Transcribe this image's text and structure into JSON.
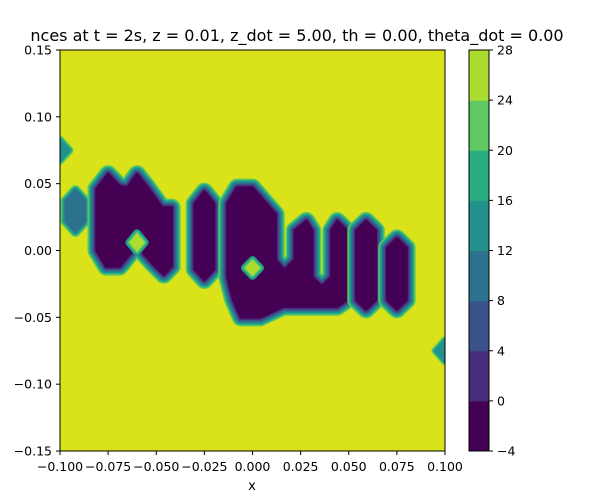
{
  "chart_data": {
    "type": "heatmap",
    "title": "nces at t = 2s, z = 0.01, z_dot = 5.00, th = 0.00, theta_dot = 0.00",
    "xlabel": "x",
    "ylabel": "",
    "xlim": [
      -0.1,
      0.1
    ],
    "ylim": [
      -0.15,
      0.15
    ],
    "x_ticks": [
      -0.1,
      -0.075,
      -0.05,
      -0.025,
      0.0,
      0.025,
      0.05,
      0.075,
      0.1
    ],
    "x_tick_labels": [
      "−0.100",
      "−0.075",
      "−0.050",
      "−0.025",
      "0.000",
      "0.025",
      "0.050",
      "0.075",
      "0.100"
    ],
    "y_ticks": [
      -0.15,
      -0.1,
      -0.05,
      0.0,
      0.05,
      0.1,
      0.15
    ],
    "y_tick_labels": [
      "−0.15",
      "−0.10",
      "−0.05",
      "0.00",
      "0.05",
      "0.10",
      "0.15"
    ],
    "colorbar": {
      "levels": [
        -4,
        0,
        4,
        8,
        12,
        16,
        20,
        24,
        28
      ],
      "tick_labels": [
        "−4",
        "0",
        "4",
        "8",
        "12",
        "16",
        "20",
        "24",
        "28"
      ],
      "colors": [
        "#440154",
        "#472d7b",
        "#3b528b",
        "#2c728e",
        "#21918c",
        "#28ae80",
        "#5ec962",
        "#addc30",
        "#dae319"
      ]
    },
    "background_value": 26,
    "background_color": "#dae319",
    "blobs": [
      {
        "shape": "poly",
        "points": [
          [
            -0.1,
            0.083
          ],
          [
            -0.095,
            0.075
          ],
          [
            -0.1,
            0.067
          ]
        ],
        "min_value": 12
      },
      {
        "shape": "poly",
        "points": [
          [
            -0.092,
            0.045
          ],
          [
            -0.087,
            0.037
          ],
          [
            -0.087,
            0.022
          ],
          [
            -0.092,
            0.014
          ],
          [
            -0.097,
            0.022
          ],
          [
            -0.097,
            0.037
          ]
        ],
        "min_value": 8
      },
      {
        "shape": "poly",
        "points": [
          [
            -0.075,
            0.057
          ],
          [
            -0.069,
            0.048
          ],
          [
            -0.065,
            0.047
          ],
          [
            -0.06,
            0.057
          ],
          [
            -0.055,
            0.048
          ],
          [
            -0.047,
            0.032
          ],
          [
            -0.042,
            0.032
          ],
          [
            -0.042,
            -0.012
          ],
          [
            -0.046,
            -0.018
          ],
          [
            -0.051,
            -0.011
          ],
          [
            -0.056,
            -0.003
          ],
          [
            -0.06,
            0.004
          ],
          [
            -0.064,
            -0.003
          ],
          [
            -0.069,
            -0.012
          ],
          [
            -0.076,
            -0.012
          ],
          [
            -0.081,
            0.0
          ],
          [
            -0.081,
            0.046
          ]
        ],
        "min_value": -4
      },
      {
        "shape": "poly",
        "points": [
          [
            -0.025,
            0.044
          ],
          [
            -0.02,
            0.035
          ],
          [
            -0.02,
            -0.014
          ],
          [
            -0.025,
            -0.022
          ],
          [
            -0.03,
            -0.014
          ],
          [
            -0.03,
            0.035
          ]
        ],
        "min_value": -4
      },
      {
        "shape": "poly",
        "points": [
          [
            -0.008,
            0.047
          ],
          [
            0.0,
            0.047
          ],
          [
            0.012,
            0.027
          ],
          [
            0.012,
            -0.007
          ],
          [
            0.016,
            -0.014
          ],
          [
            0.017,
            -0.014
          ],
          [
            0.022,
            -0.007
          ],
          [
            0.022,
            0.015
          ],
          [
            0.028,
            0.022
          ],
          [
            0.031,
            0.015
          ],
          [
            0.031,
            -0.02
          ],
          [
            0.036,
            -0.027
          ],
          [
            0.041,
            -0.02
          ],
          [
            0.041,
            0.015
          ],
          [
            0.044,
            0.022
          ],
          [
            0.049,
            0.015
          ],
          [
            0.049,
            -0.037
          ],
          [
            0.044,
            -0.042
          ],
          [
            0.016,
            -0.042
          ],
          [
            0.004,
            -0.05
          ],
          [
            -0.006,
            -0.05
          ],
          [
            -0.01,
            -0.037
          ],
          [
            -0.013,
            -0.02
          ],
          [
            -0.013,
            0.035
          ]
        ],
        "min_value": -4
      },
      {
        "shape": "poly",
        "points": [
          [
            0.059,
            0.022
          ],
          [
            0.064,
            0.015
          ],
          [
            0.064,
            -0.037
          ],
          [
            0.059,
            -0.044
          ],
          [
            0.054,
            -0.037
          ],
          [
            0.054,
            0.015
          ]
        ],
        "min_value": -4
      },
      {
        "shape": "poly",
        "points": [
          [
            0.075,
            0.009
          ],
          [
            0.08,
            0.002
          ],
          [
            0.08,
            -0.037
          ],
          [
            0.075,
            -0.044
          ],
          [
            0.07,
            -0.037
          ],
          [
            0.07,
            0.002
          ]
        ],
        "min_value": -4
      },
      {
        "shape": "poly",
        "points": [
          [
            0.1,
            -0.067
          ],
          [
            0.095,
            -0.075
          ],
          [
            0.1,
            -0.083
          ]
        ],
        "min_value": 12
      }
    ],
    "islands": [
      {
        "points": [
          [
            -0.06,
            0.013
          ],
          [
            -0.056,
            0.006
          ],
          [
            -0.06,
            -0.001
          ],
          [
            -0.064,
            0.006
          ]
        ],
        "value": 26
      },
      {
        "points": [
          [
            0.0,
            -0.007
          ],
          [
            0.004,
            -0.013
          ],
          [
            0.0,
            -0.019
          ],
          [
            -0.004,
            -0.013
          ]
        ],
        "value": 26
      }
    ]
  }
}
